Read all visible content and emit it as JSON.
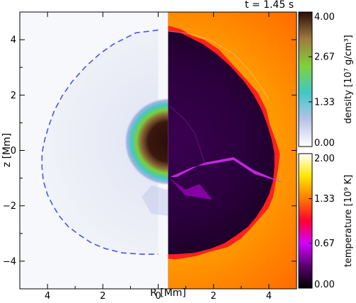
{
  "time_label": "t = 1.45 s",
  "chart_data": {
    "type": "heatmap",
    "title": "t = 1.45 s",
    "xlabel": "R [Mm]",
    "ylabel": "z [Mm]",
    "xlim": [
      -5,
      5
    ],
    "ylim": [
      -5,
      5
    ],
    "x_ticks": [
      -4,
      -2,
      0,
      2,
      4
    ],
    "x_tick_labels": [
      "4",
      "2",
      "0",
      "2",
      "4"
    ],
    "y_ticks": [
      -4,
      -2,
      0,
      2,
      4
    ],
    "y_tick_labels": [
      "−4",
      "−2",
      "0",
      "2",
      "4"
    ],
    "left_panel": "density",
    "right_panel": "temperature",
    "shock_front_contour": [
      [
        0,
        4.35
      ],
      [
        -0.4,
        4.3
      ],
      [
        -0.8,
        4.25
      ],
      [
        -1.2,
        4.05
      ],
      [
        -1.6,
        3.85
      ],
      [
        -2.1,
        3.5
      ],
      [
        -2.6,
        3.05
      ],
      [
        -3.1,
        2.5
      ],
      [
        -3.45,
        2.0
      ],
      [
        -3.75,
        1.45
      ],
      [
        -3.95,
        0.9
      ],
      [
        -4.1,
        0.4
      ],
      [
        -4.2,
        -0.1
      ],
      [
        -4.2,
        -0.6
      ],
      [
        -4.15,
        -1.1
      ],
      [
        -4.0,
        -1.6
      ],
      [
        -3.8,
        -2.0
      ],
      [
        -3.55,
        -2.4
      ],
      [
        -3.25,
        -2.75
      ],
      [
        -2.85,
        -3.05
      ],
      [
        -2.4,
        -3.35
      ],
      [
        -1.9,
        -3.55
      ],
      [
        -1.3,
        -3.7
      ],
      [
        -0.6,
        -3.75
      ],
      [
        0,
        -3.75
      ]
    ],
    "colorbars": [
      {
        "name": "density",
        "label": "density [10⁷ g/cm³]",
        "range": [
          0.0,
          4.0
        ],
        "ticks": [
          0.0,
          1.33,
          2.67,
          4.0
        ],
        "tick_labels": [
          "0.00",
          "1.33",
          "2.67",
          "4.00"
        ],
        "colormap": [
          "#ffffff",
          "#b8c2e6",
          "#3ec9c9",
          "#7ed23a",
          "#a07a3e",
          "#2a0d0a"
        ]
      },
      {
        "name": "temperature",
        "label": "temperature [10⁹ K]",
        "range": [
          0.0,
          2.0
        ],
        "ticks": [
          0.0,
          0.67,
          1.33,
          2.0
        ],
        "tick_labels": [
          "0.00",
          "0.67",
          "1.33",
          "2.00"
        ],
        "colormap": [
          "#000000",
          "#5a0070",
          "#d400ff",
          "#ff0030",
          "#ff7a00",
          "#ffe600",
          "#ffffff"
        ]
      }
    ]
  }
}
